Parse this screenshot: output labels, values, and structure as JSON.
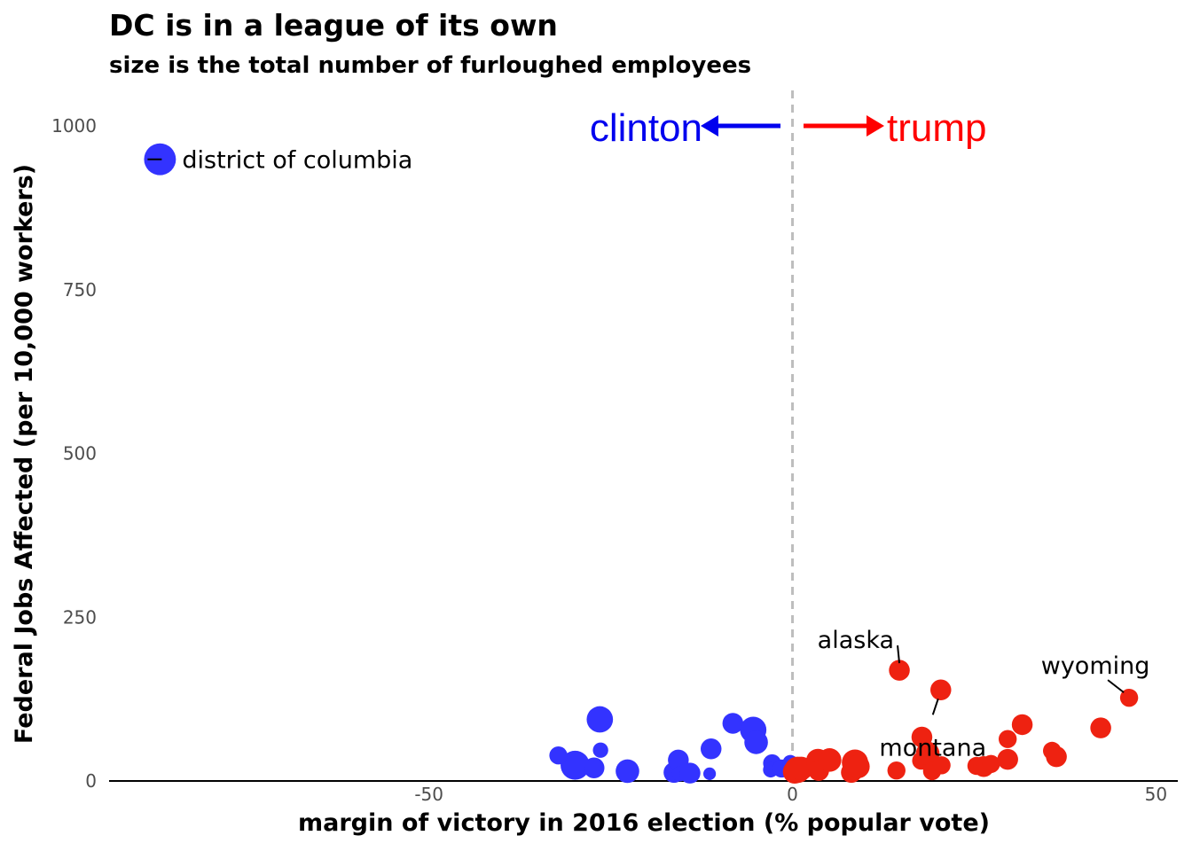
{
  "chart_data": {
    "type": "scatter",
    "title": "DC is in a league of its own",
    "subtitle": "size is the total number of furloughed employees",
    "xlabel": "margin of victory in 2016 election (% popular vote)",
    "ylabel": "Federal Jobs Affected (per 10,000 workers)",
    "xlim": [
      -94,
      53
    ],
    "ylim": [
      0,
      1000
    ],
    "x_ticks": [
      -50,
      0,
      50
    ],
    "x_tick_labels": [
      "-50",
      "0",
      "50"
    ],
    "y_ticks": [
      0,
      250,
      500,
      750,
      1000
    ],
    "y_tick_labels": [
      "0",
      "250",
      "500",
      "750",
      "1000"
    ],
    "grid": false,
    "legend": "none",
    "reference_line": {
      "x": 0,
      "style": "dashed",
      "color": "#bdbdbd"
    },
    "colors": {
      "clinton": "#3333ff",
      "trump": "#ee2211"
    },
    "annotations": {
      "clinton": {
        "text": "clinton",
        "color": "#0000ee"
      },
      "trump": {
        "text": "trump",
        "color": "#ff0000"
      }
    },
    "series": [
      {
        "party": "clinton",
        "points": [
          {
            "x": -87,
            "y": 949,
            "size": 9,
            "label": "district of columbia"
          },
          {
            "x": -26.5,
            "y": 94,
            "size": 7
          },
          {
            "x": -29.9,
            "y": 24,
            "size": 8
          },
          {
            "x": -27.3,
            "y": 20,
            "size": 5
          },
          {
            "x": -32.2,
            "y": 39,
            "size": 4
          },
          {
            "x": -26.4,
            "y": 47,
            "size": 3
          },
          {
            "x": -22.7,
            "y": 15,
            "size": 6
          },
          {
            "x": -16.3,
            "y": 13,
            "size": 5
          },
          {
            "x": -15.7,
            "y": 32,
            "size": 5
          },
          {
            "x": -15.5,
            "y": 11,
            "size": 3
          },
          {
            "x": -14.1,
            "y": 12,
            "size": 5
          },
          {
            "x": -11.4,
            "y": 11,
            "size": 2
          },
          {
            "x": -11.2,
            "y": 49,
            "size": 5
          },
          {
            "x": -8.2,
            "y": 88,
            "size": 5
          },
          {
            "x": -5.4,
            "y": 78,
            "size": 7
          },
          {
            "x": -5.0,
            "y": 59,
            "size": 6
          },
          {
            "x": -2.8,
            "y": 27,
            "size": 4
          },
          {
            "x": -3.0,
            "y": 17,
            "size": 3
          },
          {
            "x": -1.5,
            "y": 19,
            "size": 4
          },
          {
            "x": -0.3,
            "y": 28,
            "size": 3
          }
        ]
      },
      {
        "party": "trump",
        "points": [
          {
            "x": 14.7,
            "y": 169,
            "size": 5,
            "label": "alaska"
          },
          {
            "x": 20.4,
            "y": 139,
            "size": 5,
            "label": "montana"
          },
          {
            "x": 46.3,
            "y": 127,
            "size": 4,
            "label": "wyoming"
          },
          {
            "x": 0.3,
            "y": 14,
            "size": 6
          },
          {
            "x": 0.7,
            "y": 17,
            "size": 7
          },
          {
            "x": 1.2,
            "y": 19,
            "size": 6
          },
          {
            "x": 3.5,
            "y": 31,
            "size": 6
          },
          {
            "x": 3.6,
            "y": 16,
            "size": 5
          },
          {
            "x": 5.1,
            "y": 32,
            "size": 6
          },
          {
            "x": 8.1,
            "y": 13,
            "size": 5
          },
          {
            "x": 8.6,
            "y": 28,
            "size": 7
          },
          {
            "x": 9.0,
            "y": 22,
            "size": 6
          },
          {
            "x": 14.3,
            "y": 16,
            "size": 4
          },
          {
            "x": 17.8,
            "y": 67,
            "size": 5
          },
          {
            "x": 17.7,
            "y": 31,
            "size": 4
          },
          {
            "x": 18.6,
            "y": 42,
            "size": 6
          },
          {
            "x": 19.2,
            "y": 15,
            "size": 4
          },
          {
            "x": 20.5,
            "y": 24,
            "size": 4
          },
          {
            "x": 25.3,
            "y": 23,
            "size": 4
          },
          {
            "x": 26.3,
            "y": 22,
            "size": 5
          },
          {
            "x": 27.3,
            "y": 26,
            "size": 4
          },
          {
            "x": 29.6,
            "y": 64,
            "size": 4
          },
          {
            "x": 29.6,
            "y": 33,
            "size": 5
          },
          {
            "x": 31.6,
            "y": 86,
            "size": 5
          },
          {
            "x": 35.7,
            "y": 46,
            "size": 4
          },
          {
            "x": 36.3,
            "y": 37,
            "size": 5
          },
          {
            "x": 42.4,
            "y": 81,
            "size": 5
          }
        ]
      }
    ]
  }
}
